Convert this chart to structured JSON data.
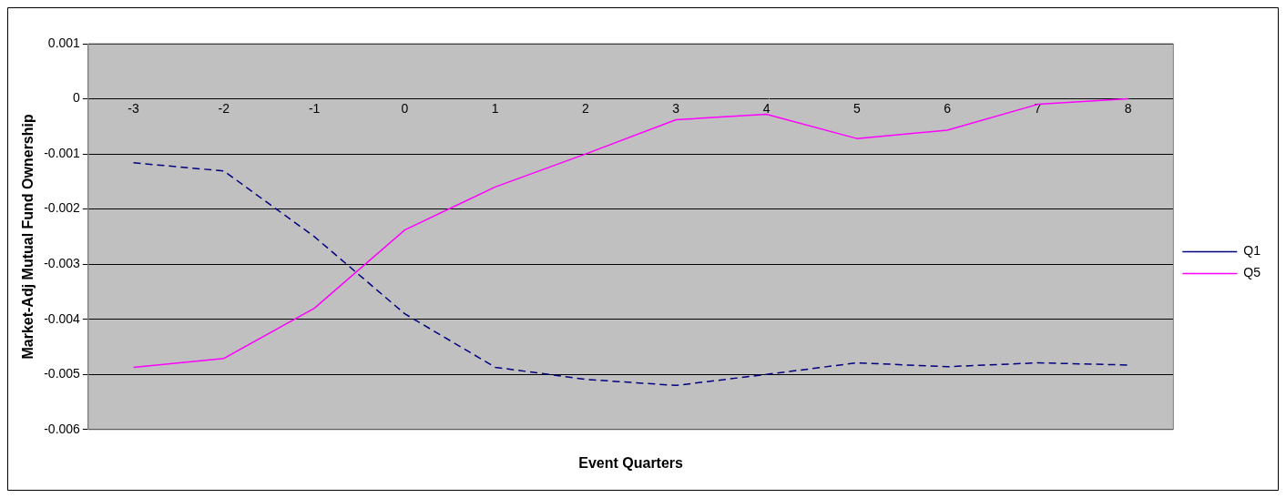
{
  "chart_data": {
    "type": "line",
    "xlabel": "Event Quarters",
    "ylabel": "Market-Adj Mutual Fund Ownership",
    "categories": [
      "-3",
      "-2",
      "-1",
      "0",
      "1",
      "2",
      "3",
      "4",
      "5",
      "6",
      "7",
      "8"
    ],
    "series": [
      {
        "name": "Q1",
        "color": "#000080",
        "line_style": "dashed",
        "values": [
          -0.00116,
          -0.00131,
          -0.0025,
          -0.0039,
          -0.00487,
          -0.00509,
          -0.0052,
          -0.005,
          -0.00479,
          -0.00486,
          -0.00479,
          -0.00483
        ]
      },
      {
        "name": "Q5",
        "color": "#ff00ff",
        "line_style": "solid",
        "values": [
          -0.00487,
          -0.00471,
          -0.0038,
          -0.00238,
          -0.0016,
          -0.001,
          -0.00038,
          -0.00028,
          -0.00072,
          -0.00057,
          -0.0001,
          0
        ]
      }
    ],
    "ylim": [
      -0.006,
      0.001
    ],
    "yticks": [
      -0.006,
      -0.005,
      -0.004,
      -0.003,
      -0.002,
      -0.001,
      0,
      0.001
    ],
    "grid": "y",
    "legend": "right",
    "marker": "none"
  }
}
